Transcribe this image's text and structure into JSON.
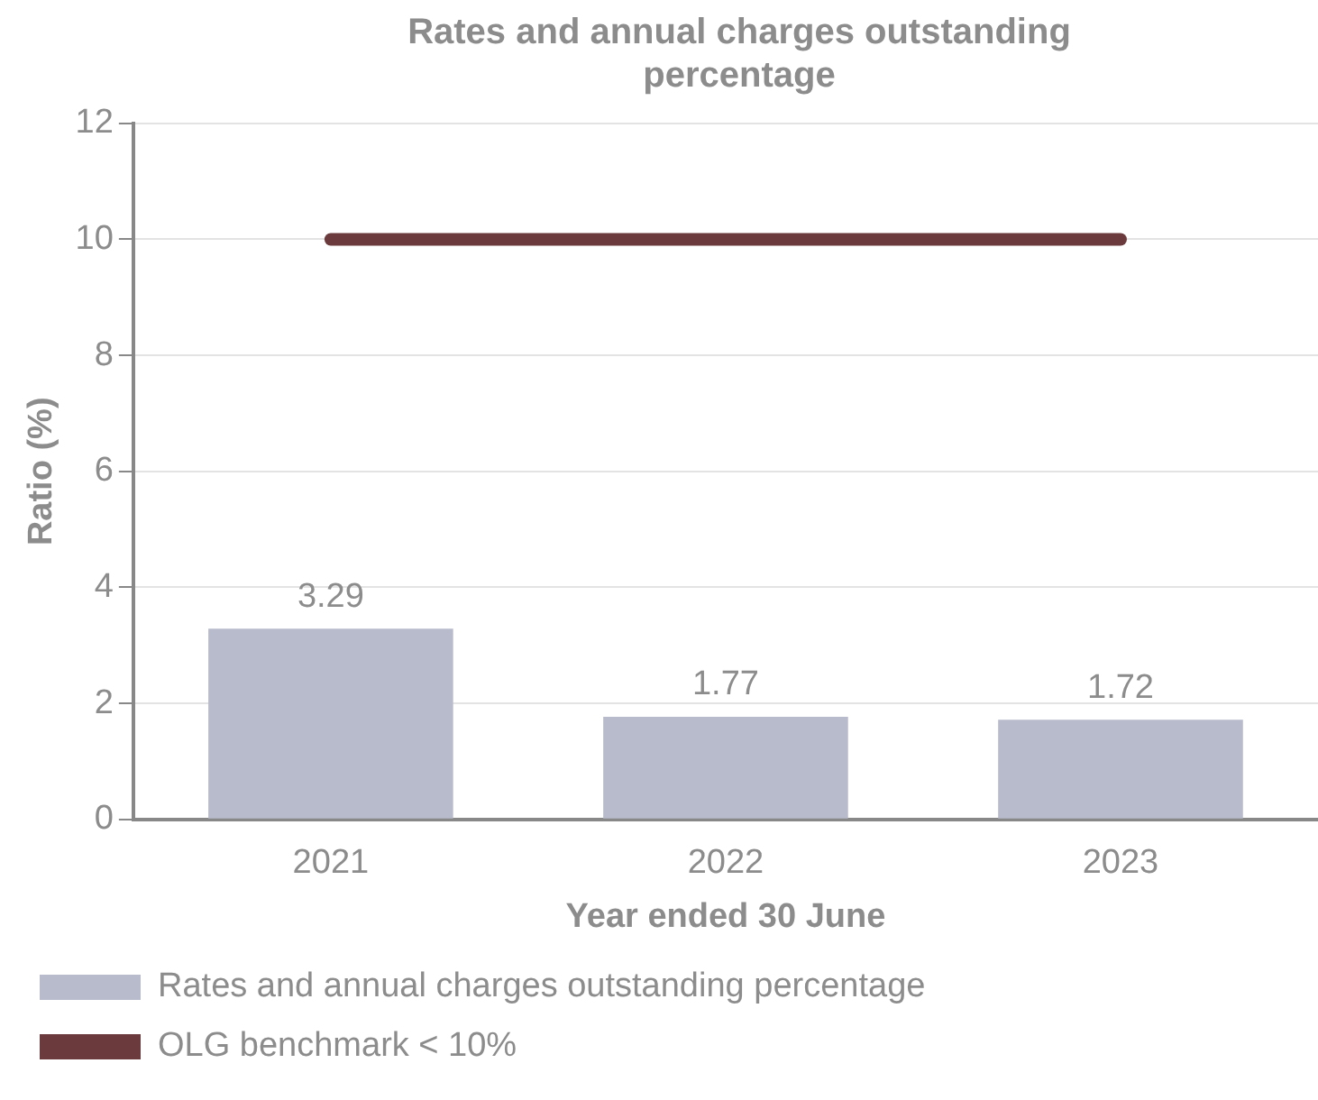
{
  "chart_data": {
    "type": "bar",
    "title": "Rates and annual charges outstanding percentage",
    "xlabel": "Year ended 30 June",
    "ylabel": "Ratio (%)",
    "categories": [
      "2021",
      "2022",
      "2023"
    ],
    "series": [
      {
        "name": "Rates and annual charges outstanding percentage",
        "color": "#b8bbcc",
        "values": [
          3.29,
          1.77,
          1.72
        ],
        "value_labels": [
          "3.29",
          "1.77",
          "1.72"
        ]
      },
      {
        "name": "OLG benchmark < 10%",
        "type": "line",
        "color": "#6b3a3c",
        "values": [
          10,
          10,
          10
        ]
      }
    ],
    "ylim": [
      0,
      12
    ],
    "yticks": [
      0,
      2,
      4,
      6,
      8,
      10,
      12
    ],
    "grid": "y",
    "legend": "bottom",
    "marker": "none",
    "line_style": "solid"
  }
}
